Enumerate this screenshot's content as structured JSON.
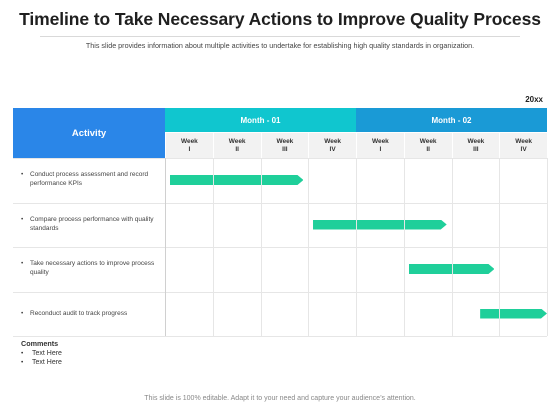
{
  "slide": {
    "title": "Timeline to Take Necessary Actions to Improve Quality Process",
    "subtitle": "This slide provides information about multiple activities to undertake for establishing high quality standards in organization.",
    "year_label": "20xx",
    "footer": "This slide is 100% editable. Adapt it to your need and capture your audience’s attention."
  },
  "table": {
    "activity_header": "Activity",
    "months": [
      {
        "label": "Month - 01",
        "color": "#10c6cf"
      },
      {
        "label": "Month - 02",
        "color": "#1a9ad6"
      }
    ],
    "weeks": [
      {
        "word": "Week",
        "num": "I"
      },
      {
        "word": "Week",
        "num": "II"
      },
      {
        "word": "Week",
        "num": "III"
      },
      {
        "word": "Week",
        "num": "IV"
      },
      {
        "word": "Week",
        "num": "I"
      },
      {
        "word": "Week",
        "num": "II"
      },
      {
        "word": "Week",
        "num": "III"
      },
      {
        "word": "Week",
        "num": "IV"
      }
    ],
    "activities": [
      {
        "label": "Conduct process assessment and record performance KPIs",
        "start_week": 0.1,
        "end_week": 2.9
      },
      {
        "label": "Compare process performance with quality standards",
        "start_week": 3.1,
        "end_week": 5.9
      },
      {
        "label": "Take necessary actions to improve process quality",
        "start_week": 5.1,
        "end_week": 6.9
      },
      {
        "label": "Reconduct audit to track progress",
        "start_week": 6.6,
        "end_week": 8.0
      }
    ],
    "bar_color": "#1fcf9a"
  },
  "comments": {
    "heading": "Comments",
    "items": [
      "Text Here",
      "Text Here"
    ]
  }
}
